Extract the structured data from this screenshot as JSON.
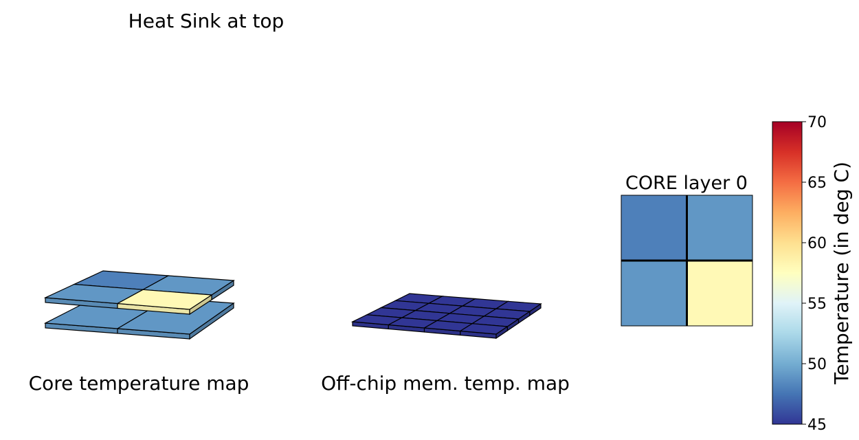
{
  "title": "Heat Sink at top",
  "panels": {
    "core_caption": "Core temperature map",
    "mem_caption": "Off-chip mem. temp. map",
    "layer_title": "CORE layer 0"
  },
  "colorbar": {
    "label": "Temperature (in deg C)",
    "min": 45,
    "max": 70,
    "ticks": [
      "45",
      "50",
      "55",
      "60",
      "65",
      "70"
    ],
    "colormap": "RdYlBu_r"
  },
  "chart_data": [
    {
      "type": "heatmap",
      "name": "core-3d-stack",
      "layers": [
        {
          "grid": [
            [
              49,
              49
            ]
          ],
          "note": "bottom layer"
        },
        {
          "grid": [
            [
              48,
              49
            ],
            [
              49,
              58
            ]
          ]
        }
      ]
    },
    {
      "type": "heatmap",
      "name": "mem-3d-map",
      "grid": [
        [
          45,
          45,
          45,
          45
        ],
        [
          45,
          45,
          45,
          45
        ],
        [
          45,
          45,
          45,
          45
        ],
        [
          45,
          45,
          45,
          45
        ]
      ]
    },
    {
      "type": "heatmap",
      "name": "core-layer-0",
      "grid": [
        [
          48,
          49
        ],
        [
          49,
          58
        ]
      ],
      "vmin": 45,
      "vmax": 70
    }
  ]
}
